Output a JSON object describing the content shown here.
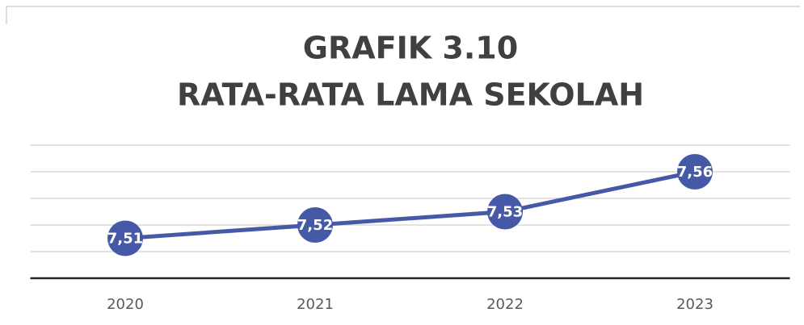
{
  "chart_data": {
    "type": "line",
    "title": "GRAFIK 3.10",
    "subtitle": "RATA-RATA LAMA SEKOLAH",
    "categories": [
      "2020",
      "2021",
      "2022",
      "2023"
    ],
    "values": [
      7.51,
      7.52,
      7.53,
      7.56
    ],
    "value_labels": [
      "7,51",
      "7,52",
      "7,53",
      "7,56"
    ],
    "color": "#4659a7",
    "ylim": [
      7.48,
      7.58
    ],
    "yticks": [
      7.48,
      7.5,
      7.52,
      7.54,
      7.56,
      7.58
    ],
    "grid": true
  }
}
